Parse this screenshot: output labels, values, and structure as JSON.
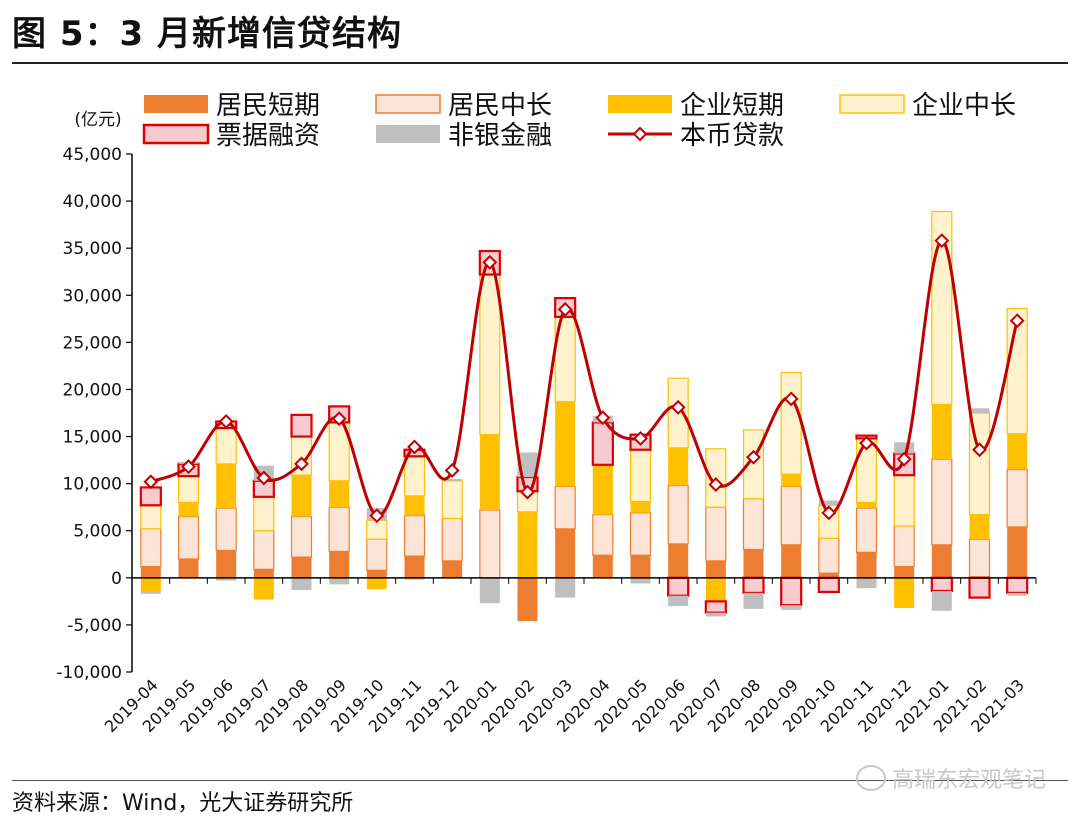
{
  "header": {
    "title": "图 5：3 月新增信贷结构"
  },
  "footer": {
    "source": "资料来源：Wind，光大证券研究所",
    "watermark": "高瑞东宏观笔记"
  },
  "colors": {
    "居民短期": "#ED7D31",
    "居民中长": "#FCE4D6",
    "企业短期": "#FFC000",
    "企业中长": "#FFF2CC",
    "票据融资": "#F8CBD0",
    "非银金融": "#BFBFBF",
    "本币贷款": "#C00000"
  },
  "chart_data": {
    "type": "bar",
    "stacked": true,
    "title": "3 月新增信贷结构",
    "ylabel": "(亿元)",
    "ylim": [
      -10000,
      45000
    ],
    "yticks": [
      -10000,
      -5000,
      0,
      5000,
      10000,
      15000,
      20000,
      25000,
      30000,
      35000,
      40000,
      45000
    ],
    "ytick_labels": [
      "-10,000",
      "-5,000",
      "0",
      "5,000",
      "10,000",
      "15,000",
      "20,000",
      "25,000",
      "30,000",
      "35,000",
      "40,000",
      "45,000"
    ],
    "categories": [
      "2019-04",
      "2019-05",
      "2019-06",
      "2019-07",
      "2019-08",
      "2019-09",
      "2019-10",
      "2019-11",
      "2019-12",
      "2020-01",
      "2020-02",
      "2020-03",
      "2020-04",
      "2020-05",
      "2020-06",
      "2020-07",
      "2020-08",
      "2020-09",
      "2020-10",
      "2020-11",
      "2020-12",
      "2021-01",
      "2021-02",
      "2021-03"
    ],
    "series": [
      {
        "name": "居民短期",
        "values": [
          1200,
          2000,
          2900,
          900,
          2200,
          2800,
          800,
          2300,
          1800,
          0,
          -4600,
          5200,
          2400,
          2400,
          3600,
          1800,
          3000,
          3500,
          500,
          2700,
          1200,
          3500,
          100,
          5400
        ]
      },
      {
        "name": "居民中长",
        "values": [
          4000,
          4500,
          4500,
          4100,
          4300,
          4700,
          3300,
          4300,
          4500,
          7200,
          0,
          4500,
          4300,
          4500,
          6200,
          5700,
          5400,
          6200,
          3700,
          4700,
          4300,
          9100,
          4000,
          6100
        ]
      },
      {
        "name": "企业短期",
        "values": [
          -1500,
          1500,
          4700,
          -2300,
          4400,
          2800,
          -1200,
          2100,
          0,
          8000,
          7000,
          9000,
          5300,
          1200,
          4000,
          -2500,
          0,
          1300,
          0,
          600,
          -3200,
          5800,
          2600,
          3800
        ]
      },
      {
        "name": "企业中长",
        "values": [
          2500,
          2800,
          3800,
          3600,
          4100,
          6200,
          2000,
          4200,
          4000,
          17000,
          2200,
          9000,
          0,
          5500,
          7400,
          6200,
          7300,
          10800,
          3500,
          6800,
          5400,
          20500,
          10800,
          13300
        ]
      },
      {
        "name": "票据融资",
        "values": [
          1900,
          1300,
          700,
          1700,
          2300,
          1700,
          0,
          700,
          0,
          2500,
          1500,
          2000,
          4500,
          1600,
          -1900,
          -1200,
          -1600,
          -2900,
          -1500,
          300,
          2300,
          -1400,
          -2100,
          -1600
        ]
      },
      {
        "name": "非银金融",
        "values": [
          -200,
          200,
          -300,
          1600,
          -1300,
          -700,
          1300,
          -200,
          200,
          -2700,
          2600,
          -2100,
          700,
          -600,
          -1100,
          -400,
          -1700,
          -500,
          500,
          -1100,
          1200,
          -2100,
          500,
          -300
        ]
      }
    ],
    "line": {
      "name": "本币贷款",
      "values": [
        10200,
        11800,
        16600,
        10600,
        12100,
        16900,
        6600,
        13900,
        11400,
        33500,
        9100,
        28500,
        17000,
        14800,
        18100,
        9900,
        12800,
        19000,
        6900,
        14300,
        12600,
        35800,
        13600,
        27300
      ]
    },
    "legend": {
      "position": "top",
      "rows": [
        [
          {
            "name": "居民短期",
            "style": "solid"
          },
          {
            "name": "居民中长",
            "style": "outlined"
          },
          {
            "name": "企业短期",
            "style": "solid"
          },
          {
            "name": "企业中长",
            "style": "outlined"
          }
        ],
        [
          {
            "name": "票据融资",
            "style": "outlined"
          },
          {
            "name": "非银金融",
            "style": "solid"
          },
          {
            "name": "本币贷款",
            "style": "line"
          }
        ]
      ]
    }
  }
}
